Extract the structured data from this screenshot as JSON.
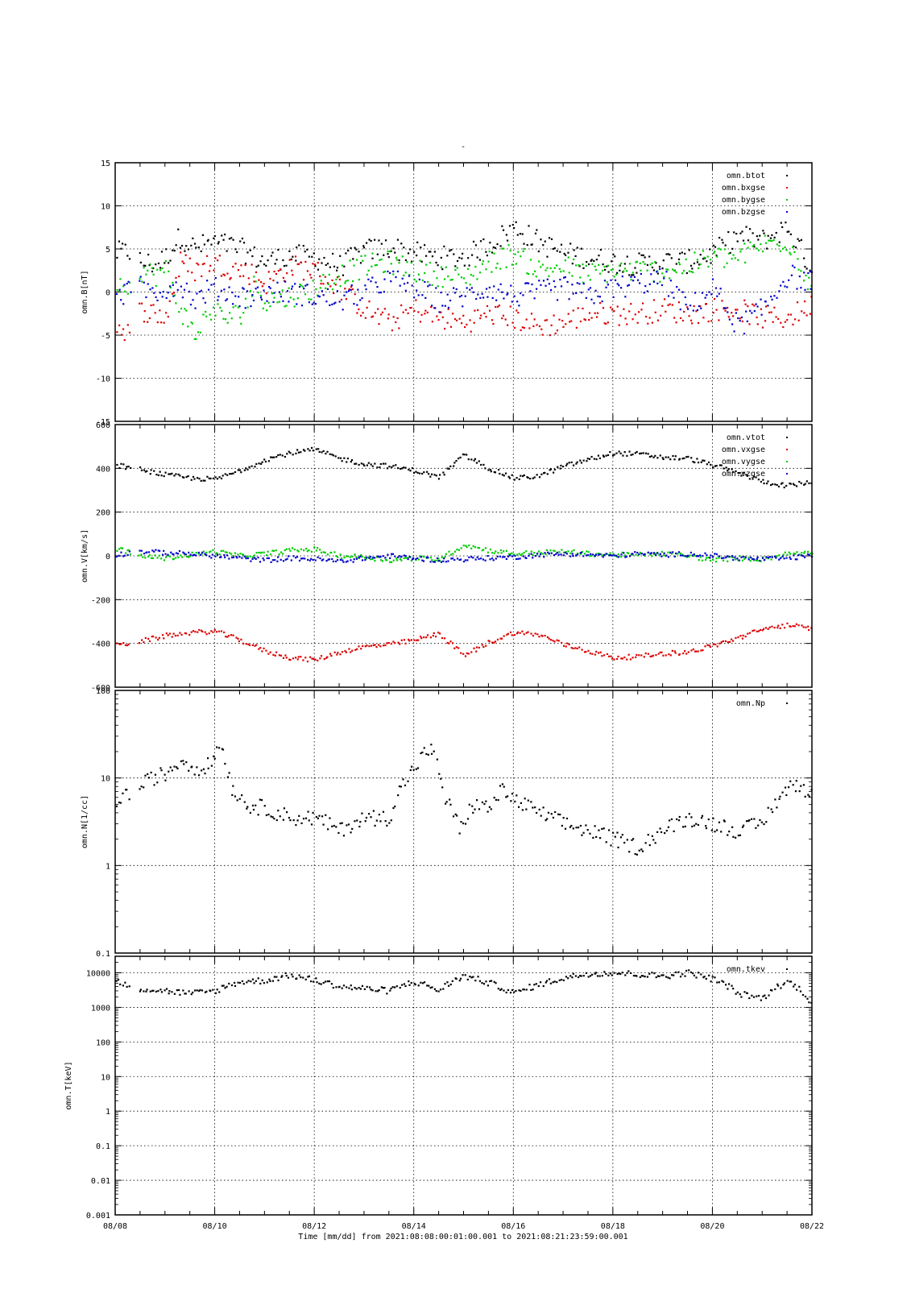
{
  "figure": {
    "title": "-",
    "x_axis": {
      "tick_labels": [
        "08/08",
        "08/10",
        "08/12",
        "08/14",
        "08/16",
        "08/18",
        "08/20",
        "08/22"
      ],
      "range_days": [
        0,
        14
      ],
      "caption": "Time [mm/dd]  from 2021:08:08:00:01:00.001  to  2021:08:21:23:59:00.001"
    }
  },
  "colors": {
    "black": "#000000",
    "red": "#dd0000",
    "green": "#00cc00",
    "blue": "#0000cc"
  },
  "chart_data": [
    {
      "type": "scatter",
      "ylabel": "omn.B[nT]",
      "yscale": "linear",
      "ylim": [
        -15,
        15
      ],
      "yticks": [
        -15,
        -10,
        -5,
        0,
        5,
        10,
        15
      ],
      "ytick_labels": [
        "-15",
        "-10",
        "-5",
        "0",
        "5",
        "10",
        "15"
      ],
      "grid": true,
      "legend_position": "top-right",
      "series": [
        {
          "name": "omn.btot",
          "color": "#000000",
          "x": [
            0.0,
            0.3,
            0.5,
            0.8,
            1.0,
            1.3,
            1.6,
            1.9,
            2.2,
            2.5,
            2.8,
            3.0,
            3.5,
            4.0,
            4.5,
            5.0,
            5.5,
            6.0,
            6.5,
            7.0,
            7.5,
            8.0,
            8.5,
            9.0,
            9.5,
            10.0,
            10.5,
            11.0,
            11.5,
            12.0,
            12.5,
            13.0,
            13.5,
            14.0
          ],
          "values": [
            4.5,
            4.7,
            3.5,
            3.2,
            4.0,
            6.5,
            5.0,
            5.8,
            5.5,
            5.0,
            4.0,
            3.5,
            4.2,
            4.0,
            3.0,
            4.8,
            5.2,
            4.5,
            4.0,
            4.0,
            5.5,
            7.5,
            5.8,
            4.5,
            4.0,
            3.5,
            3.2,
            3.5,
            3.5,
            4.5,
            6.5,
            6.0,
            7.5,
            2.5
          ]
        },
        {
          "name": "omn.bxgse",
          "color": "#dd0000",
          "x": [
            0.0,
            0.3,
            0.5,
            0.8,
            1.0,
            1.3,
            1.6,
            1.9,
            2.2,
            2.5,
            2.8,
            3.0,
            3.5,
            4.0,
            4.5,
            5.0,
            5.5,
            6.0,
            6.5,
            7.0,
            7.5,
            8.0,
            8.5,
            9.0,
            9.5,
            10.0,
            10.5,
            11.0,
            11.5,
            12.0,
            12.5,
            13.0,
            13.5,
            14.0
          ],
          "values": [
            -4.0,
            -4.5,
            -2.0,
            -2.5,
            -3.0,
            3.5,
            2.5,
            3.5,
            3.0,
            2.5,
            2.0,
            1.0,
            3.0,
            2.5,
            0.5,
            -2.0,
            -3.5,
            -2.0,
            -3.0,
            -3.5,
            -2.5,
            -3.0,
            -4.0,
            -3.5,
            -2.5,
            -2.5,
            -2.5,
            -2.0,
            -2.5,
            -2.0,
            -2.0,
            -3.0,
            -3.0,
            -1.5
          ]
        },
        {
          "name": "omn.bygse",
          "color": "#00cc00",
          "x": [
            0.0,
            0.3,
            0.5,
            0.8,
            1.0,
            1.3,
            1.6,
            1.9,
            2.2,
            2.5,
            2.8,
            3.0,
            3.5,
            4.0,
            4.5,
            5.0,
            5.5,
            6.0,
            6.5,
            7.0,
            7.5,
            8.0,
            8.5,
            9.0,
            9.5,
            10.0,
            10.5,
            11.0,
            11.5,
            12.0,
            12.5,
            13.0,
            13.5,
            14.0
          ],
          "values": [
            1.5,
            0.5,
            2.5,
            2.0,
            2.5,
            -2.0,
            -5.0,
            -2.0,
            -3.0,
            -2.5,
            1.0,
            -1.0,
            -0.5,
            0.5,
            2.0,
            3.0,
            3.5,
            2.5,
            2.0,
            1.5,
            3.5,
            4.5,
            2.5,
            3.0,
            2.0,
            2.5,
            2.5,
            2.5,
            3.0,
            4.0,
            4.0,
            5.5,
            6.0,
            0.5
          ]
        },
        {
          "name": "omn.bzgse",
          "color": "#0000cc",
          "x": [
            0.0,
            0.3,
            0.5,
            0.8,
            1.0,
            1.3,
            1.6,
            1.9,
            2.2,
            2.5,
            2.8,
            3.0,
            3.5,
            4.0,
            4.5,
            5.0,
            5.5,
            6.0,
            6.5,
            7.0,
            7.5,
            8.0,
            8.5,
            9.0,
            9.5,
            10.0,
            10.5,
            11.0,
            11.5,
            12.0,
            12.5,
            13.0,
            13.5,
            14.0
          ],
          "values": [
            -1.0,
            0.5,
            0.5,
            0.0,
            0.5,
            1.0,
            -1.0,
            0.5,
            0.0,
            -0.5,
            -0.5,
            0.0,
            0.0,
            -0.5,
            -1.0,
            0.0,
            1.5,
            0.5,
            -1.0,
            -0.5,
            0.5,
            -0.5,
            0.0,
            0.5,
            -0.5,
            0.5,
            1.0,
            1.5,
            -2.0,
            0.5,
            -4.0,
            -2.0,
            2.0,
            1.0
          ]
        }
      ]
    },
    {
      "type": "scatter",
      "ylabel": "omn.V[km/s]",
      "yscale": "linear",
      "ylim": [
        -600,
        600
      ],
      "yticks": [
        -600,
        -400,
        -200,
        0,
        200,
        400,
        600
      ],
      "ytick_labels": [
        "-600",
        "-400",
        "-200",
        "0",
        "200",
        "400",
        "600"
      ],
      "grid": true,
      "legend_position": "top-right",
      "series": [
        {
          "name": "omn.vtot",
          "color": "#000000",
          "x": [
            0.0,
            0.5,
            1.0,
            1.5,
            2.0,
            2.5,
            3.0,
            3.5,
            4.0,
            4.5,
            5.0,
            5.5,
            6.0,
            6.5,
            7.0,
            7.5,
            8.0,
            8.5,
            9.0,
            9.5,
            10.0,
            10.5,
            11.0,
            11.5,
            12.0,
            12.5,
            13.0,
            13.5,
            14.0
          ],
          "values": [
            415,
            395,
            370,
            355,
            350,
            390,
            440,
            470,
            485,
            445,
            420,
            410,
            390,
            360,
            460,
            400,
            355,
            365,
            410,
            440,
            470,
            465,
            450,
            445,
            415,
            380,
            340,
            320,
            340
          ]
        },
        {
          "name": "omn.vxgse",
          "color": "#dd0000",
          "x": [
            0.0,
            0.5,
            1.0,
            1.5,
            2.0,
            2.5,
            3.0,
            3.5,
            4.0,
            4.5,
            5.0,
            5.5,
            6.0,
            6.5,
            7.0,
            7.5,
            8.0,
            8.5,
            9.0,
            9.5,
            10.0,
            10.5,
            11.0,
            11.5,
            12.0,
            12.5,
            13.0,
            13.5,
            14.0
          ],
          "values": [
            -410,
            -390,
            -365,
            -350,
            -345,
            -385,
            -435,
            -465,
            -475,
            -440,
            -415,
            -405,
            -385,
            -355,
            -455,
            -395,
            -350,
            -360,
            -405,
            -435,
            -465,
            -460,
            -445,
            -440,
            -410,
            -375,
            -335,
            -315,
            -335
          ]
        },
        {
          "name": "omn.vygse",
          "color": "#00cc00",
          "x": [
            0.0,
            0.5,
            1.0,
            1.5,
            2.0,
            2.5,
            3.0,
            3.5,
            4.0,
            4.5,
            5.0,
            5.5,
            6.0,
            6.5,
            7.0,
            7.5,
            8.0,
            8.5,
            9.0,
            9.5,
            10.0,
            10.5,
            11.0,
            11.5,
            12.0,
            12.5,
            13.0,
            13.5,
            14.0
          ],
          "values": [
            35,
            0,
            -10,
            5,
            20,
            0,
            10,
            25,
            30,
            0,
            -5,
            -20,
            -10,
            -15,
            50,
            25,
            10,
            15,
            20,
            10,
            5,
            5,
            10,
            0,
            -20,
            -10,
            -15,
            10,
            20
          ]
        },
        {
          "name": "omn.vzgse",
          "color": "#0000cc",
          "x": [
            0.0,
            0.5,
            1.0,
            1.5,
            2.0,
            2.5,
            3.0,
            3.5,
            4.0,
            4.5,
            5.0,
            5.5,
            6.0,
            6.5,
            7.0,
            7.5,
            8.0,
            8.5,
            9.0,
            9.5,
            10.0,
            10.5,
            11.0,
            11.5,
            12.0,
            12.5,
            13.0,
            13.5,
            14.0
          ],
          "values": [
            5,
            20,
            15,
            10,
            0,
            -10,
            -20,
            -10,
            -15,
            -25,
            -10,
            0,
            -10,
            -20,
            -15,
            -10,
            -5,
            5,
            10,
            5,
            0,
            10,
            5,
            10,
            0,
            -10,
            -15,
            -10,
            0
          ]
        }
      ]
    },
    {
      "type": "scatter",
      "ylabel": "omn.N[1/cc]",
      "yscale": "log",
      "ylim": [
        0.1,
        100
      ],
      "yticks": [
        0.1,
        1,
        10,
        100
      ],
      "ytick_labels": [
        "0.1",
        "1",
        "10",
        "100"
      ],
      "grid": true,
      "legend_position": "top-right",
      "series": [
        {
          "name": "omn.Np",
          "color": "#000000",
          "x": [
            0.0,
            0.5,
            0.8,
            1.0,
            1.3,
            1.6,
            1.9,
            2.1,
            2.3,
            2.6,
            3.0,
            3.5,
            4.0,
            4.5,
            5.0,
            5.5,
            5.8,
            6.0,
            6.3,
            6.6,
            6.9,
            7.2,
            7.5,
            7.8,
            8.0,
            8.5,
            9.0,
            9.5,
            10.0,
            10.5,
            11.0,
            11.5,
            12.0,
            12.5,
            13.0,
            13.5,
            13.7,
            14.0
          ],
          "values": [
            5.5,
            8.0,
            10.5,
            11.0,
            16.0,
            13.0,
            14.0,
            25.0,
            8.0,
            5.0,
            4.5,
            3.5,
            3.5,
            2.5,
            3.5,
            3.5,
            9.0,
            13.0,
            22.0,
            6.0,
            2.5,
            5.0,
            4.5,
            7.5,
            5.5,
            4.0,
            3.0,
            2.5,
            2.0,
            1.6,
            2.5,
            3.5,
            3.0,
            2.5,
            3.0,
            7.5,
            8.5,
            6.5
          ]
        }
      ]
    },
    {
      "type": "scatter",
      "ylabel": "omn.T[keV]",
      "yscale": "log",
      "ylim": [
        0.001,
        30000
      ],
      "yticks": [
        0.001,
        0.01,
        0.1,
        1,
        10,
        100,
        1000,
        10000
      ],
      "ytick_labels": [
        "0.001",
        "0.01",
        "0.1",
        "1",
        "10",
        "100",
        "1000",
        "10000"
      ],
      "grid": true,
      "legend_position": "top-right",
      "series": [
        {
          "name": "omn.tkev",
          "color": "#000000",
          "x": [
            0.0,
            0.5,
            1.0,
            1.5,
            2.0,
            2.5,
            3.0,
            3.5,
            4.0,
            4.5,
            5.0,
            5.5,
            6.0,
            6.5,
            7.0,
            7.5,
            8.0,
            8.5,
            9.0,
            9.5,
            10.0,
            10.5,
            11.0,
            11.5,
            12.0,
            12.5,
            13.0,
            13.5,
            14.0
          ],
          "values": [
            5500,
            3500,
            3000,
            2500,
            3000,
            5500,
            6000,
            8500,
            6000,
            4000,
            3500,
            3000,
            5500,
            3000,
            8000,
            5000,
            2500,
            4500,
            7000,
            9500,
            10000,
            9000,
            8000,
            10000,
            6500,
            2500,
            1800,
            5500,
            1000
          ]
        }
      ]
    }
  ]
}
